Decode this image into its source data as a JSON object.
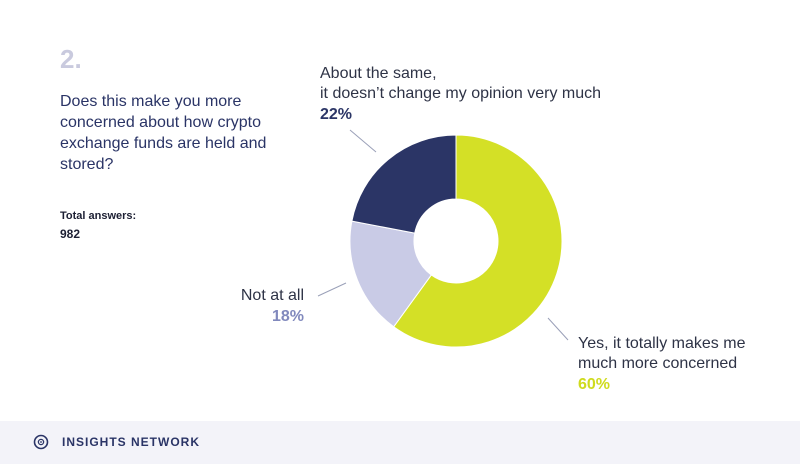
{
  "header": {
    "question_number": "2.",
    "question": "Does this make you more concerned about how crypto exchange funds are held and stored?",
    "total_label": "Total answers:",
    "total_value": "982"
  },
  "chart_data": {
    "type": "pie",
    "variant": "donut",
    "categories": [
      "Yes, it totally makes me much more concerned",
      "Not at all",
      "About the same, it doesn't change my opinion very much"
    ],
    "values": [
      60,
      18,
      22
    ],
    "unit": "%",
    "colors": [
      "#d4e026",
      "#c9cbe6",
      "#2b3566"
    ],
    "labels": {
      "same_line1": "About the same,",
      "same_line2": "it doesn’t change my opinion very much",
      "same_pct": "22%",
      "not_line1": "Not at all",
      "not_pct": "18%",
      "yes_line1": "Yes, it totally makes me",
      "yes_line2": "much more concerned",
      "yes_pct": "60%"
    }
  },
  "footer": {
    "brand": "INSIGHTS NETWORK",
    "logo_icon": "insights-network-logo-icon"
  }
}
